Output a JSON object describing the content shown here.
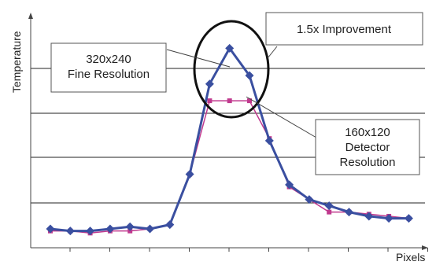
{
  "chart_data": {
    "type": "line",
    "title": "",
    "xlabel": "Pixels",
    "ylabel": "Temperature",
    "grid": true,
    "x": [
      1,
      2,
      3,
      4,
      5,
      6,
      7,
      8,
      9,
      10,
      11,
      12,
      13,
      14,
      15,
      16,
      17,
      18,
      19
    ],
    "ylim": [
      0,
      100
    ],
    "series": [
      {
        "label_text": "160x120 Detector Resolution",
        "color": "#3a4fa0",
        "marker": "diamond",
        "values": [
          9,
          8,
          8,
          9,
          10,
          9,
          11,
          35,
          78,
          95,
          82,
          51,
          30,
          23,
          20,
          17,
          15,
          14,
          14
        ]
      },
      {
        "label_text": "320x240 Fine Resolution",
        "color": "#c0398e",
        "marker": "square",
        "values": [
          8,
          8,
          7,
          8,
          8,
          9,
          11,
          35,
          70,
          70,
          70,
          52,
          29,
          23,
          17,
          17,
          16,
          15,
          14
        ]
      }
    ],
    "annotations": [
      {
        "text": "1.5x Improvement"
      },
      {
        "text": "320x240\nFine Resolution"
      },
      {
        "text": "160x120\nDetector\nResolution"
      }
    ]
  }
}
